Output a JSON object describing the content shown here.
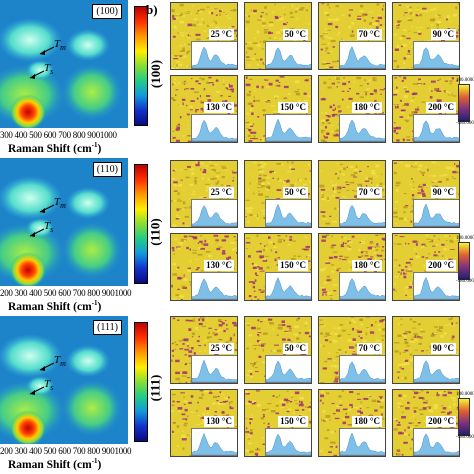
{
  "panel_b_label": "b)",
  "panel_a": [
    {
      "facet": "(100)",
      "t_m": "T",
      "t_m_sub": "m",
      "t_s": "T",
      "t_s_sub": "s",
      "x_ticks": "300 400 500 600 700 800 9001000",
      "x_label_main": "Raman Shift (cm",
      "x_label_sup": "-1",
      "x_label_end": ")"
    },
    {
      "facet": "(110)",
      "t_m": "T",
      "t_m_sub": "m",
      "t_s": "T",
      "t_s_sub": "s",
      "x_ticks": "200 300 400 500 600 700 800 9001000",
      "x_label_main": "Raman Shift (cm",
      "x_label_sup": "-1",
      "x_label_end": ")"
    },
    {
      "facet": "(111)",
      "t_m": "T",
      "t_m_sub": "m",
      "t_s": "T",
      "t_s_sub": "s",
      "x_ticks": "200 300 400 500 600 700 800 9001000",
      "x_label_main": "Raman Shift (cm",
      "x_label_sup": "-1",
      "x_label_end": ")"
    }
  ],
  "panel_b": [
    {
      "facet": "(100)",
      "temps_row1": [
        "25 °C",
        "50 °C",
        "70 °C",
        "90 °C"
      ],
      "temps_row2": [
        "130 °C",
        "150 °C",
        "180 °C",
        "200 °C"
      ],
      "scale_top": "180.0000",
      "scale_bottom": "-180.0000"
    },
    {
      "facet": "(110)",
      "temps_row1": [
        "25 °C",
        "50 °C",
        "70 °C",
        "90 °C"
      ],
      "temps_row2": [
        "130 °C",
        "150 °C",
        "180 °C",
        "200 °C"
      ],
      "scale_top": "180.0000",
      "scale_bottom": "-180.0000"
    },
    {
      "facet": "(111)",
      "temps_row1": [
        "25 °C",
        "50 °C",
        "70 °C",
        "90 °C"
      ],
      "temps_row2": [
        "130 °C",
        "150 °C",
        "180 °C",
        "200 °C"
      ],
      "scale_top": "180.0000",
      "scale_bottom": "-180.0000"
    }
  ],
  "colors": {
    "yellow": "#e8d020",
    "magenta": "#a03070",
    "tile_base": "#e3cf33"
  }
}
